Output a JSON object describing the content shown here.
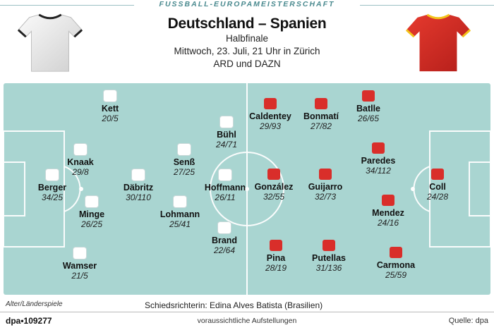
{
  "kicker": "FUSSBALL-EUROPAMEISTERSCHAFT",
  "match": "Deutschland – Spanien",
  "round": "Halbfinale",
  "datetime": "Mittwoch, 23. Juli, 21 Uhr in Zürich",
  "broadcast": "ARD und DAZN",
  "colors": {
    "germany_shirt": "#ffffff",
    "spain_shirt": "#d92e2a",
    "pitch": "#a9d5d1",
    "pitch_lines": "#ffffff"
  },
  "germany": [
    {
      "name": "Kett",
      "stats": "20/5"
    },
    {
      "name": "Bühl",
      "stats": "24/71"
    },
    {
      "name": "Knaak",
      "stats": "29/8"
    },
    {
      "name": "Senß",
      "stats": "27/25"
    },
    {
      "name": "Berger",
      "stats": "34/25"
    },
    {
      "name": "Däbritz",
      "stats": "30/110"
    },
    {
      "name": "Hoffmann",
      "stats": "26/11"
    },
    {
      "name": "Minge",
      "stats": "26/25"
    },
    {
      "name": "Lohmann",
      "stats": "25/41"
    },
    {
      "name": "Brand",
      "stats": "22/64"
    },
    {
      "name": "Wamser",
      "stats": "21/5"
    }
  ],
  "spain": [
    {
      "name": "Caldentey",
      "stats": "29/93"
    },
    {
      "name": "Bonmatí",
      "stats": "27/82"
    },
    {
      "name": "Batlle",
      "stats": "26/65"
    },
    {
      "name": "Paredes",
      "stats": "34/112"
    },
    {
      "name": "González",
      "stats": "32/55"
    },
    {
      "name": "Guijarro",
      "stats": "32/73"
    },
    {
      "name": "Coll",
      "stats": "24/28"
    },
    {
      "name": "Mendez",
      "stats": "24/16"
    },
    {
      "name": "Pina",
      "stats": "28/19"
    },
    {
      "name": "Putellas",
      "stats": "31/136"
    },
    {
      "name": "Carmona",
      "stats": "25/59"
    }
  ],
  "legend": "Alter/Länderspiele",
  "referee": "Schiedsrichterin: Edina Alves Batista (Brasilien)",
  "credit": "dpa•109277",
  "footnote": "voraussichtliche Aufstellungen",
  "source": "Quelle: dpa"
}
